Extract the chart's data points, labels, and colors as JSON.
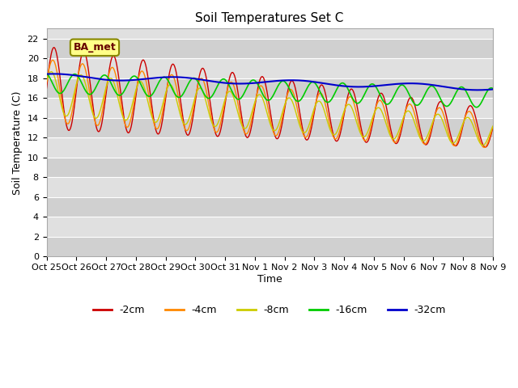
{
  "title": "Soil Temperatures Set C",
  "xlabel": "Time",
  "ylabel": "Soil Temperature (C)",
  "ylim": [
    0,
    23
  ],
  "yticks": [
    0,
    2,
    4,
    6,
    8,
    10,
    12,
    14,
    16,
    18,
    20,
    22
  ],
  "xtick_labels": [
    "Oct 25",
    "Oct 26",
    "Oct 27",
    "Oct 28",
    "Oct 29",
    "Oct 30",
    "Oct 31",
    "Nov 1",
    "Nov 2",
    "Nov 3",
    "Nov 4",
    "Nov 5",
    "Nov 6",
    "Nov 7",
    "Nov 8",
    "Nov 9"
  ],
  "legend_labels": [
    "-2cm",
    "-4cm",
    "-8cm",
    "-16cm",
    "-32cm"
  ],
  "line_colors": [
    "#cc0000",
    "#ff8800",
    "#cccc00",
    "#00cc00",
    "#0000cc"
  ],
  "annotation_text": "BA_met",
  "annotation_bg": "#ffff88",
  "annotation_border": "#888800",
  "n_days": 15,
  "bg_gray": "#e0e0e0",
  "band_gray": "#d0d0d0"
}
